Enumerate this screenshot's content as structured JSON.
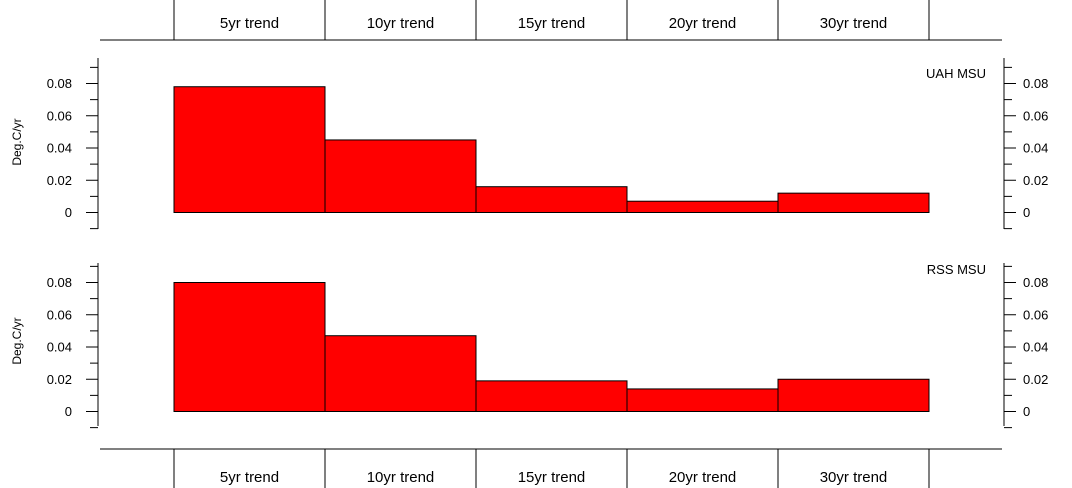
{
  "chart_data": {
    "type": "bar",
    "categories": [
      "5yr trend",
      "10yr trend",
      "15yr trend",
      "20yr trend",
      "30yr trend"
    ],
    "ylabel": "Deg.C/yr",
    "ylim": [
      0,
      0.08
    ],
    "yticks": [
      "0",
      "0.02",
      "0.04",
      "0.06",
      "0.08"
    ],
    "bar_color": "#ff0000",
    "panels": [
      {
        "title": "UAH MSU",
        "values": [
          0.078,
          0.045,
          0.016,
          0.007,
          0.012
        ]
      },
      {
        "title": "RSS MSU",
        "values": [
          0.08,
          0.047,
          0.019,
          0.014,
          0.02
        ]
      }
    ]
  }
}
